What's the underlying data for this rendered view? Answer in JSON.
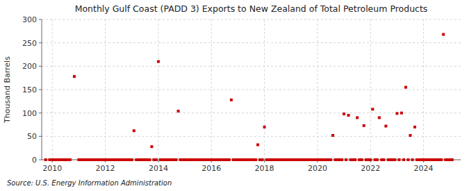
{
  "chart_data": {
    "type": "scatter",
    "title": "Monthly Gulf Coast (PADD 3) Exports to New Zealand of Total Petroleum Products",
    "ylabel": "Thousand Barrels",
    "annotations": [
      "Source: U.S. Energy Information Administration"
    ],
    "color": "#cc0000",
    "marker": "square",
    "grid": true,
    "xlim": [
      2009.6,
      2025.4
    ],
    "ylim": [
      0,
      300
    ],
    "xticks": [
      2010,
      2012,
      2014,
      2016,
      2018,
      2020,
      2022,
      2024
    ],
    "yticks": [
      0,
      50,
      100,
      150,
      200,
      250,
      300
    ],
    "x": [
      2009.75,
      2009.9,
      2010.0,
      2010.08,
      2010.17,
      2010.25,
      2010.33,
      2010.42,
      2010.5,
      2010.58,
      2010.67,
      2010.83,
      2011.0,
      2011.08,
      2011.17,
      2011.25,
      2011.33,
      2011.42,
      2011.5,
      2011.58,
      2011.67,
      2011.75,
      2011.83,
      2011.92,
      2012.0,
      2012.08,
      2012.17,
      2012.25,
      2012.33,
      2012.42,
      2012.5,
      2012.58,
      2012.67,
      2012.75,
      2012.83,
      2012.92,
      2013.0,
      2013.08,
      2013.17,
      2013.25,
      2013.33,
      2013.42,
      2013.5,
      2013.58,
      2013.67,
      2013.75,
      2013.83,
      2013.92,
      2014.0,
      2014.08,
      2014.17,
      2014.25,
      2014.33,
      2014.42,
      2014.5,
      2014.58,
      2014.67,
      2014.75,
      2014.83,
      2014.92,
      2015.0,
      2015.08,
      2015.17,
      2015.25,
      2015.33,
      2015.42,
      2015.5,
      2015.58,
      2015.67,
      2015.75,
      2015.83,
      2015.92,
      2016.0,
      2016.08,
      2016.17,
      2016.25,
      2016.33,
      2016.42,
      2016.5,
      2016.58,
      2016.67,
      2016.75,
      2016.83,
      2016.92,
      2017.0,
      2017.08,
      2017.17,
      2017.25,
      2017.33,
      2017.42,
      2017.5,
      2017.58,
      2017.67,
      2017.75,
      2017.83,
      2017.92,
      2018.0,
      2018.08,
      2018.17,
      2018.25,
      2018.33,
      2018.42,
      2018.5,
      2018.58,
      2018.67,
      2018.75,
      2018.83,
      2018.92,
      2019.0,
      2019.08,
      2019.17,
      2019.25,
      2019.33,
      2019.42,
      2019.5,
      2019.58,
      2019.67,
      2019.75,
      2019.83,
      2019.92,
      2020.0,
      2020.08,
      2020.17,
      2020.25,
      2020.33,
      2020.42,
      2020.5,
      2020.58,
      2020.67,
      2020.75,
      2020.83,
      2020.92,
      2021.0,
      2021.08,
      2021.17,
      2021.25,
      2021.33,
      2021.42,
      2021.5,
      2021.58,
      2021.67,
      2021.75,
      2021.83,
      2021.92,
      2022.0,
      2022.08,
      2022.17,
      2022.25,
      2022.33,
      2022.42,
      2022.5,
      2022.58,
      2022.67,
      2022.75,
      2022.83,
      2022.92,
      2023.0,
      2023.08,
      2023.17,
      2023.25,
      2023.33,
      2023.42,
      2023.5,
      2023.58,
      2023.67,
      2023.75,
      2023.83,
      2023.92,
      2024.0,
      2024.08,
      2024.17,
      2024.25,
      2024.33,
      2024.42,
      2024.5,
      2024.58,
      2024.67,
      2024.75,
      2024.83,
      2024.92,
      2025.0,
      2025.08
    ],
    "values": [
      0,
      0,
      0,
      0,
      0,
      0,
      0,
      0,
      0,
      0,
      0,
      178,
      0,
      0,
      0,
      0,
      0,
      0,
      0,
      0,
      0,
      0,
      0,
      0,
      0,
      0,
      0,
      0,
      0,
      0,
      0,
      0,
      0,
      0,
      0,
      0,
      0,
      62,
      0,
      0,
      0,
      0,
      0,
      0,
      0,
      28,
      0,
      0,
      210,
      0,
      0,
      0,
      0,
      0,
      0,
      0,
      0,
      104,
      0,
      0,
      0,
      0,
      0,
      0,
      0,
      0,
      0,
      0,
      0,
      0,
      0,
      0,
      0,
      0,
      0,
      0,
      0,
      0,
      0,
      0,
      0,
      128,
      0,
      0,
      0,
      0,
      0,
      0,
      0,
      0,
      0,
      0,
      0,
      32,
      0,
      0,
      70,
      0,
      0,
      0,
      0,
      0,
      0,
      0,
      0,
      0,
      0,
      0,
      0,
      0,
      0,
      0,
      0,
      0,
      0,
      0,
      0,
      0,
      0,
      0,
      0,
      0,
      0,
      0,
      0,
      0,
      0,
      52,
      0,
      0,
      0,
      0,
      98,
      0,
      95,
      0,
      0,
      0,
      90,
      0,
      0,
      73,
      0,
      0,
      0,
      108,
      0,
      0,
      90,
      0,
      0,
      72,
      0,
      0,
      0,
      0,
      99,
      0,
      100,
      0,
      155,
      0,
      52,
      0,
      70,
      0,
      0,
      0,
      0,
      0,
      0,
      0,
      0,
      0,
      0,
      0,
      0,
      268,
      0,
      0,
      0,
      0
    ]
  }
}
